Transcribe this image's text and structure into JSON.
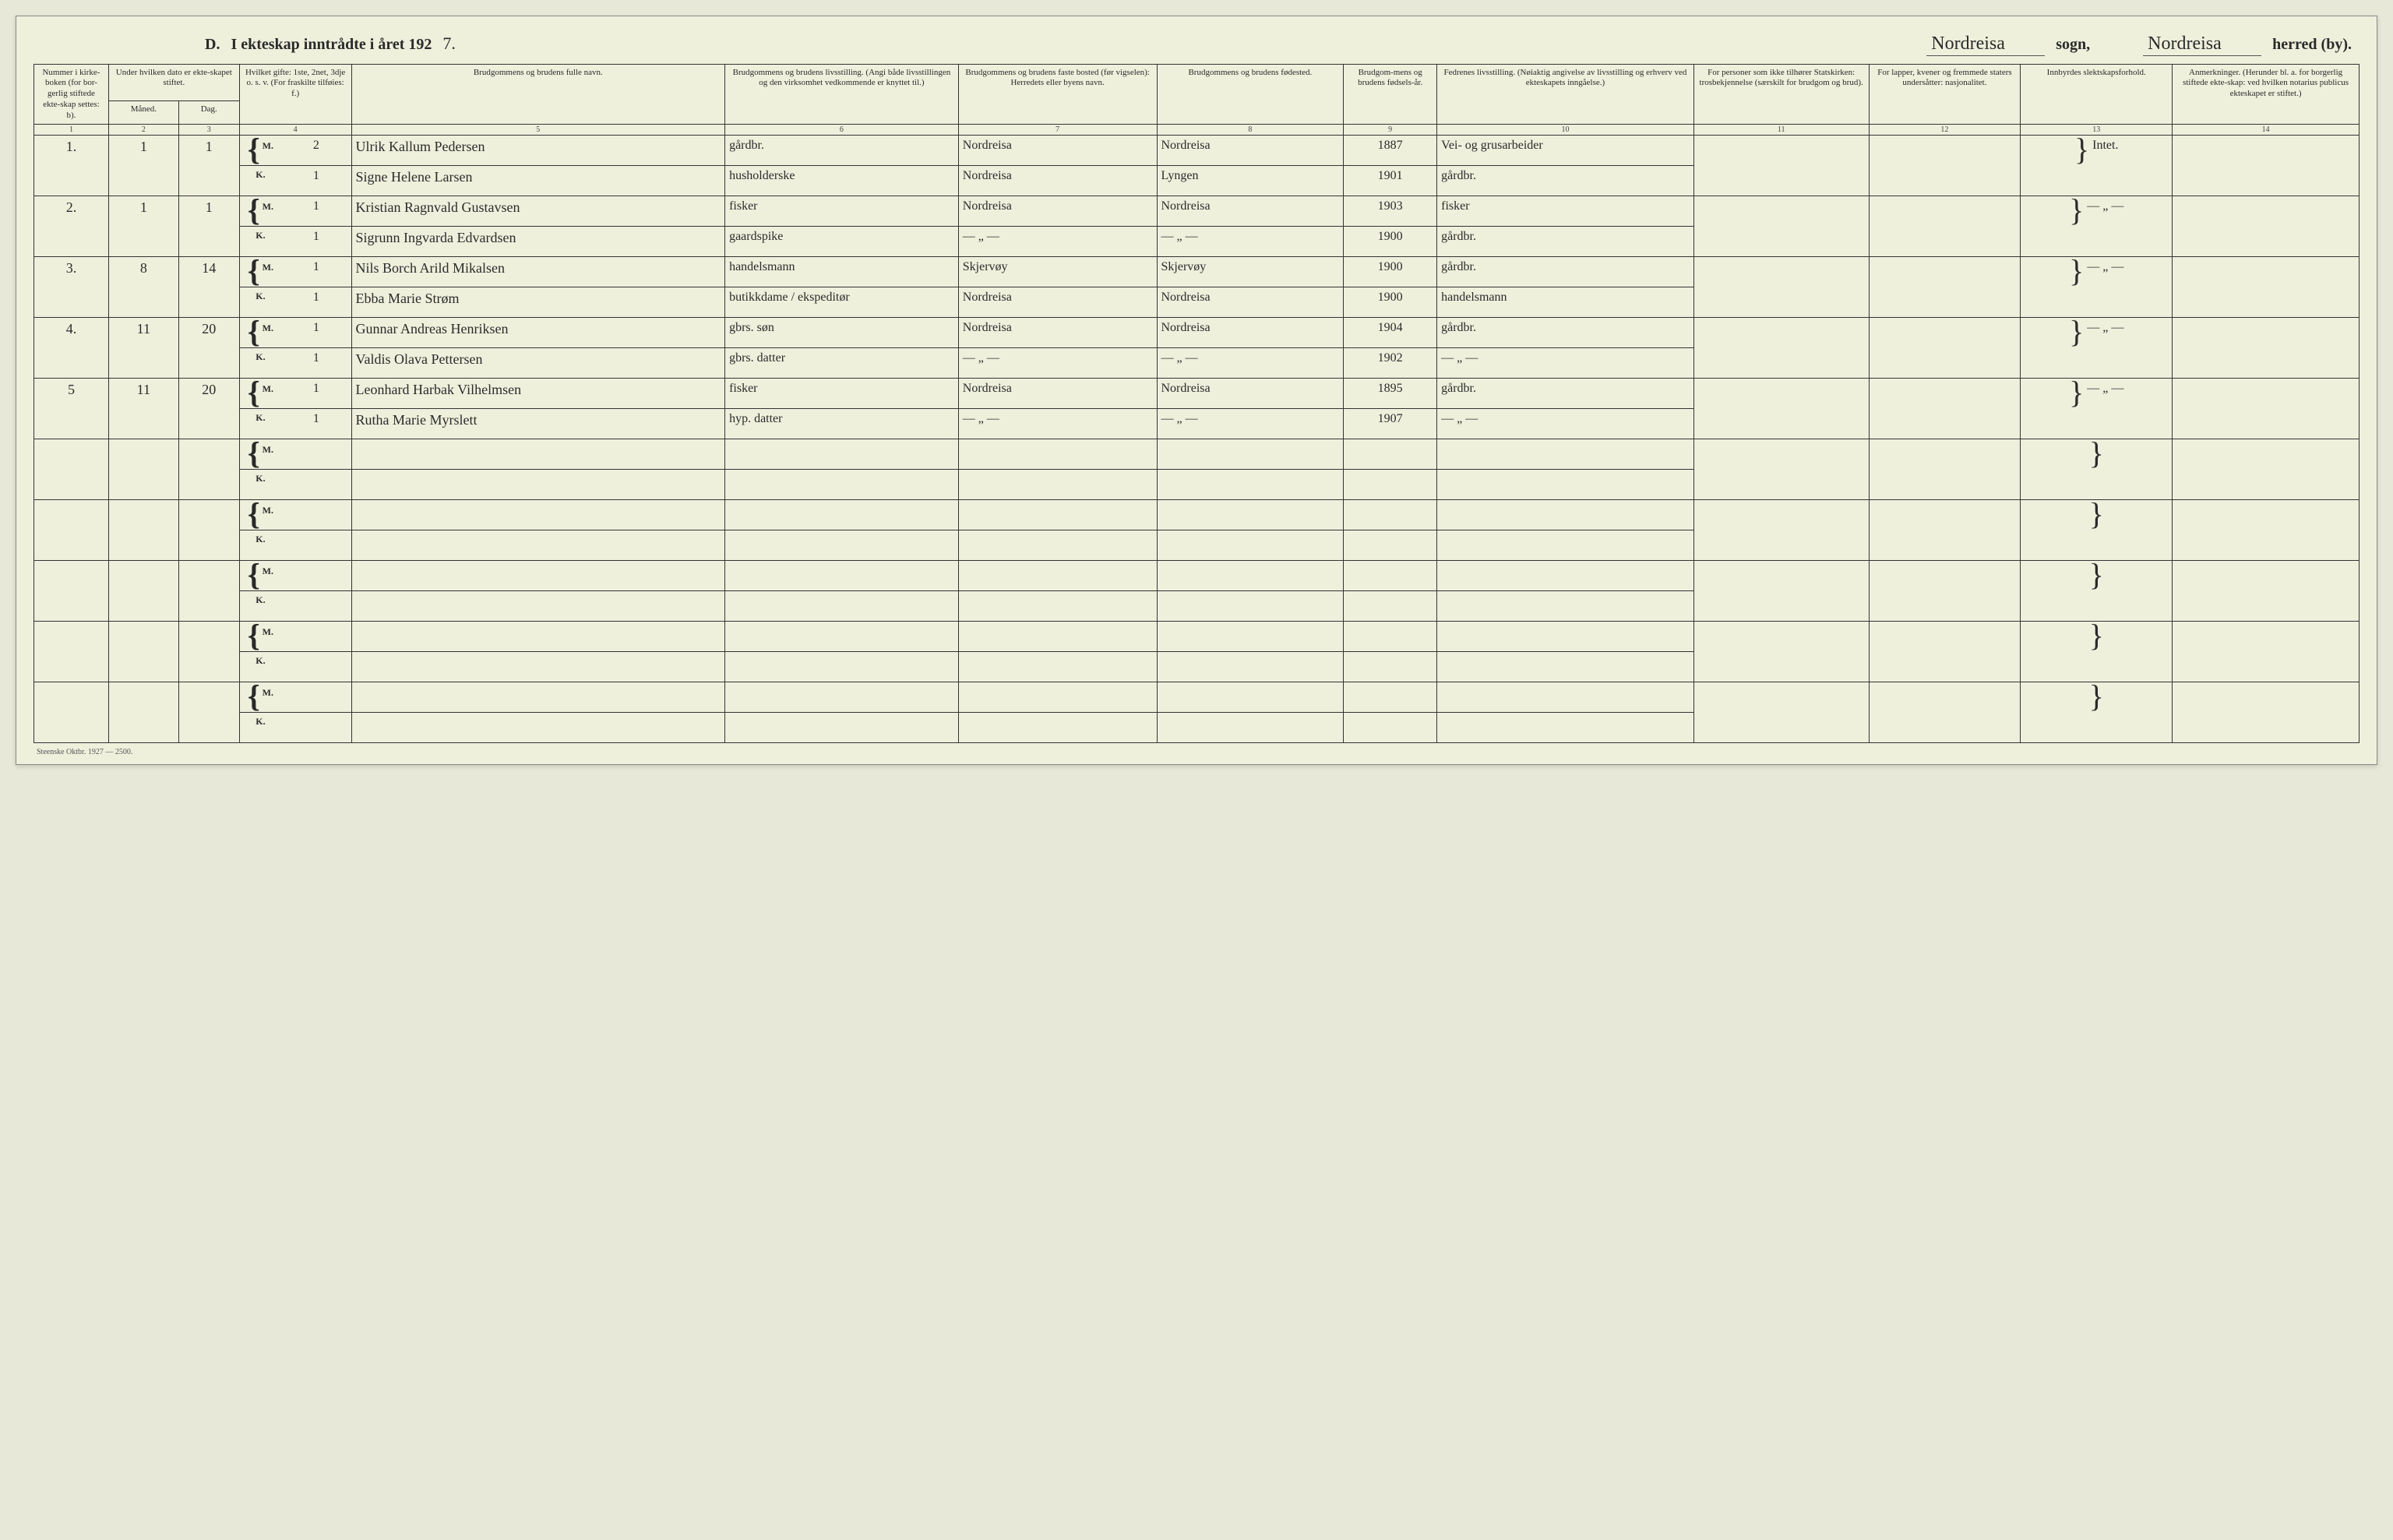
{
  "header": {
    "section_letter": "D.",
    "title_printed": "I ekteskap inntrådte i året 192",
    "year_last_digit": "7.",
    "sogn_value": "Nordreisa",
    "sogn_label": "sogn,",
    "herred_value": "Nordreisa",
    "herred_label": "herred (by)."
  },
  "columns": {
    "h1": "Nummer i kirke-boken (for bor-gerlig stiftede ekte-skap settes: b).",
    "h2_top": "Under hvilken dato er ekte-skapet stiftet.",
    "h2a": "Måned.",
    "h2b": "Dag.",
    "h4": "Hvilket gifte: 1ste, 2net, 3dje o. s. v. (For fraskilte tilføies: f.)",
    "h5": "Brudgommens og brudens fulle navn.",
    "h6": "Brudgommens og brudens livsstilling. (Angi både livsstillingen og den virksomhet vedkommende er knyttet til.)",
    "h7": "Brudgommens og brudens faste bosted (før vigselen): Herredets eller byens navn.",
    "h8": "Brudgommens og brudens fødested.",
    "h9": "Brudgom-mens og brudens fødsels-år.",
    "h10": "Fedrenes livsstilling. (Nøiaktig angivelse av livsstilling og erhverv ved ekteskapets inngåelse.)",
    "h11": "For personer som ikke tilhører Statskirken: trosbekjennelse (særskilt for brudgom og brud).",
    "h12": "For lapper, kvener og fremmede staters undersåtter: nasjonalitet.",
    "h13": "Innbyrdes slektskapsforhold.",
    "h14": "Anmerkninger. (Herunder bl. a. for borgerlig stiftede ekte-skap: ved hvilken notarius publicus ekteskapet er stiftet.)",
    "nums": [
      "1",
      "2",
      "3",
      "4",
      "5",
      "6",
      "7",
      "8",
      "9",
      "10",
      "11",
      "12",
      "13",
      "14"
    ]
  },
  "rows": [
    {
      "num": "1.",
      "maaned": "1",
      "dag": "1",
      "m": {
        "gifte": "2",
        "navn": "Ulrik Kallum Pedersen",
        "stilling": "gårdbr.",
        "bosted": "Nordreisa",
        "fodested": "Nordreisa",
        "aar": "1887",
        "far": "Vei- og grusarbeider"
      },
      "k": {
        "gifte": "1",
        "navn": "Signe Helene Larsen",
        "stilling": "husholderske",
        "bosted": "Nordreisa",
        "fodested": "Lyngen",
        "aar": "1901",
        "far": "gårdbr."
      },
      "c13": "Intet."
    },
    {
      "num": "2.",
      "maaned": "1",
      "dag": "1",
      "m": {
        "gifte": "1",
        "navn": "Kristian Ragnvald Gustavsen",
        "stilling": "fisker",
        "bosted": "Nordreisa",
        "fodested": "Nordreisa",
        "aar": "1903",
        "far": "fisker"
      },
      "k": {
        "gifte": "1",
        "navn": "Sigrunn Ingvarda Edvardsen",
        "stilling": "gaardspike",
        "bosted": "— „ —",
        "fodested": "— „ —",
        "aar": "1900",
        "far": "gårdbr."
      },
      "c13": "— „ —"
    },
    {
      "num": "3.",
      "maaned": "8",
      "dag": "14",
      "m": {
        "gifte": "1",
        "navn": "Nils Borch Arild Mikalsen",
        "stilling": "handelsmann",
        "bosted": "Skjervøy",
        "fodested": "Skjervøy",
        "aar": "1900",
        "far": "gårdbr."
      },
      "k": {
        "gifte": "1",
        "navn": "Ebba Marie Strøm",
        "stilling": "butikkdame / ekspeditør",
        "bosted": "Nordreisa",
        "fodested": "Nordreisa",
        "aar": "1900",
        "far": "handelsmann"
      },
      "c13": "— „ —"
    },
    {
      "num": "4.",
      "maaned": "11",
      "dag": "20",
      "m": {
        "gifte": "1",
        "navn": "Gunnar Andreas Henriksen",
        "stilling": "gbrs. søn",
        "bosted": "Nordreisa",
        "fodested": "Nordreisa",
        "aar": "1904",
        "far": "gårdbr."
      },
      "k": {
        "gifte": "1",
        "navn": "Valdis Olava Pettersen",
        "stilling": "gbrs. datter",
        "bosted": "— „ —",
        "fodested": "— „ —",
        "aar": "1902",
        "far": "— „ —"
      },
      "c13": "— „ —"
    },
    {
      "num": "5",
      "maaned": "11",
      "dag": "20",
      "m": {
        "gifte": "1",
        "navn": "Leonhard Harbak Vilhelmsen",
        "stilling": "fisker",
        "bosted": "Nordreisa",
        "fodested": "Nordreisa",
        "aar": "1895",
        "far": "gårdbr."
      },
      "k": {
        "gifte": "1",
        "navn": "Rutha Marie Myrslett",
        "stilling": "hyp. datter",
        "bosted": "— „ —",
        "fodested": "— „ —",
        "aar": "1907",
        "far": "— „ —"
      },
      "c13": "— „ —"
    }
  ],
  "empty_row_count": 5,
  "mk_labels": {
    "m": "M.",
    "k": "K."
  },
  "footer": "Steenske   Oktbr. 1927 — 2500."
}
